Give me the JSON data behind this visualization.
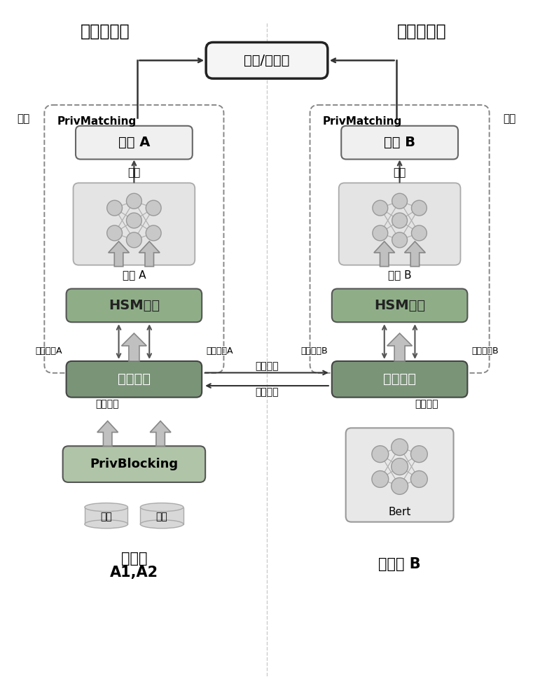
{
  "bg_color": "#ffffff",
  "title_left": "数据拥有者",
  "title_right": "模型拥有者",
  "top_box_text": "匹配/不匹配",
  "decrypt_left": "解密",
  "decrypt_right": "解密",
  "priv_matching_left": "PrivMatching",
  "priv_matching_right": "PrivMatching",
  "result_a": "结果 A",
  "result_b": "结果 B",
  "tuijuan": "推断",
  "model_a_label": "模型 A",
  "model_b_label": "模型 B",
  "hsm_left": "HSM优化",
  "hsm_right": "HSM优化",
  "embed_left": "嵌入共享",
  "embed_right": "嵌入共享",
  "data_share": "数据共享",
  "model_share": "模型共享",
  "jiami_model_a": "加密模型A",
  "jiami_data_a": "加密数据A",
  "jiami_data_b": "加密数据B",
  "jiami_model_b": "加密模型B",
  "data_input": "数据输入",
  "model_input": "模型输入",
  "priv_blocking": "PrivBlocking",
  "data_label": "数据",
  "bert_label": "Bert",
  "party_a_line1": "参与方",
  "party_a_line2": "A1,A2",
  "party_b": "参与方 B",
  "dashed_color": "#888888",
  "arrow_color": "#555555",
  "hsm_fill": "#8fae88",
  "embed_fill": "#7a9478",
  "pb_fill": "#b0c4a8",
  "nn_node_color": "#c8c8c8",
  "nn_node_ec": "#999999",
  "result_fill": "#f0f0f0",
  "nn_box_fill": "#e4e4e4",
  "bert_box_fill": "#e8e8e8",
  "cyl_fill": "#d8d8d8"
}
